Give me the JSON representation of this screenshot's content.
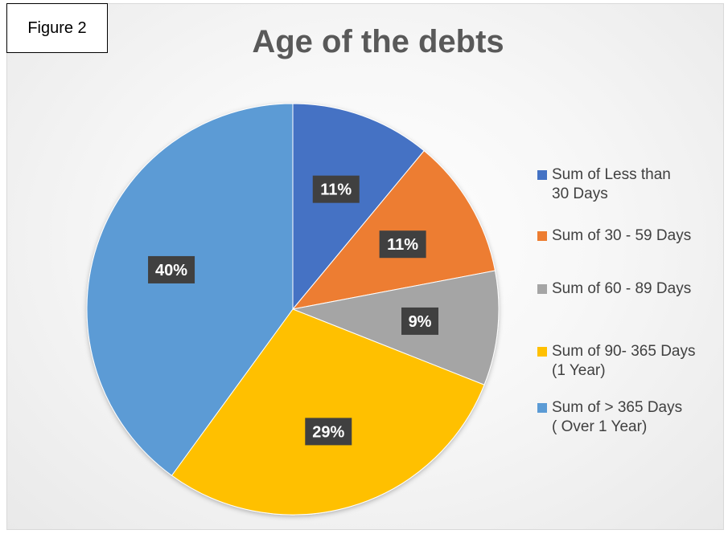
{
  "figure_label": "Figure 2",
  "chart_data": {
    "type": "pie",
    "title": "Age of the debts",
    "legend_position": "right",
    "slices": [
      {
        "name": "Sum of Less than\n30 Days",
        "value": 11,
        "label": "11%",
        "color": "#4472C4"
      },
      {
        "name": "Sum of 30 - 59 Days",
        "value": 11,
        "label": "11%",
        "color": "#ED7D31"
      },
      {
        "name": "Sum of 60 - 89 Days",
        "value": 9,
        "label": "9%",
        "color": "#A5A5A5"
      },
      {
        "name": "Sum of 90- 365 Days\n(1 Year)",
        "value": 29,
        "label": "29%",
        "color": "#FFC000"
      },
      {
        "name": "Sum of > 365 Days\n( Over 1 Year)",
        "value": 40,
        "label": "40%",
        "color": "#5B9BD5"
      }
    ]
  }
}
